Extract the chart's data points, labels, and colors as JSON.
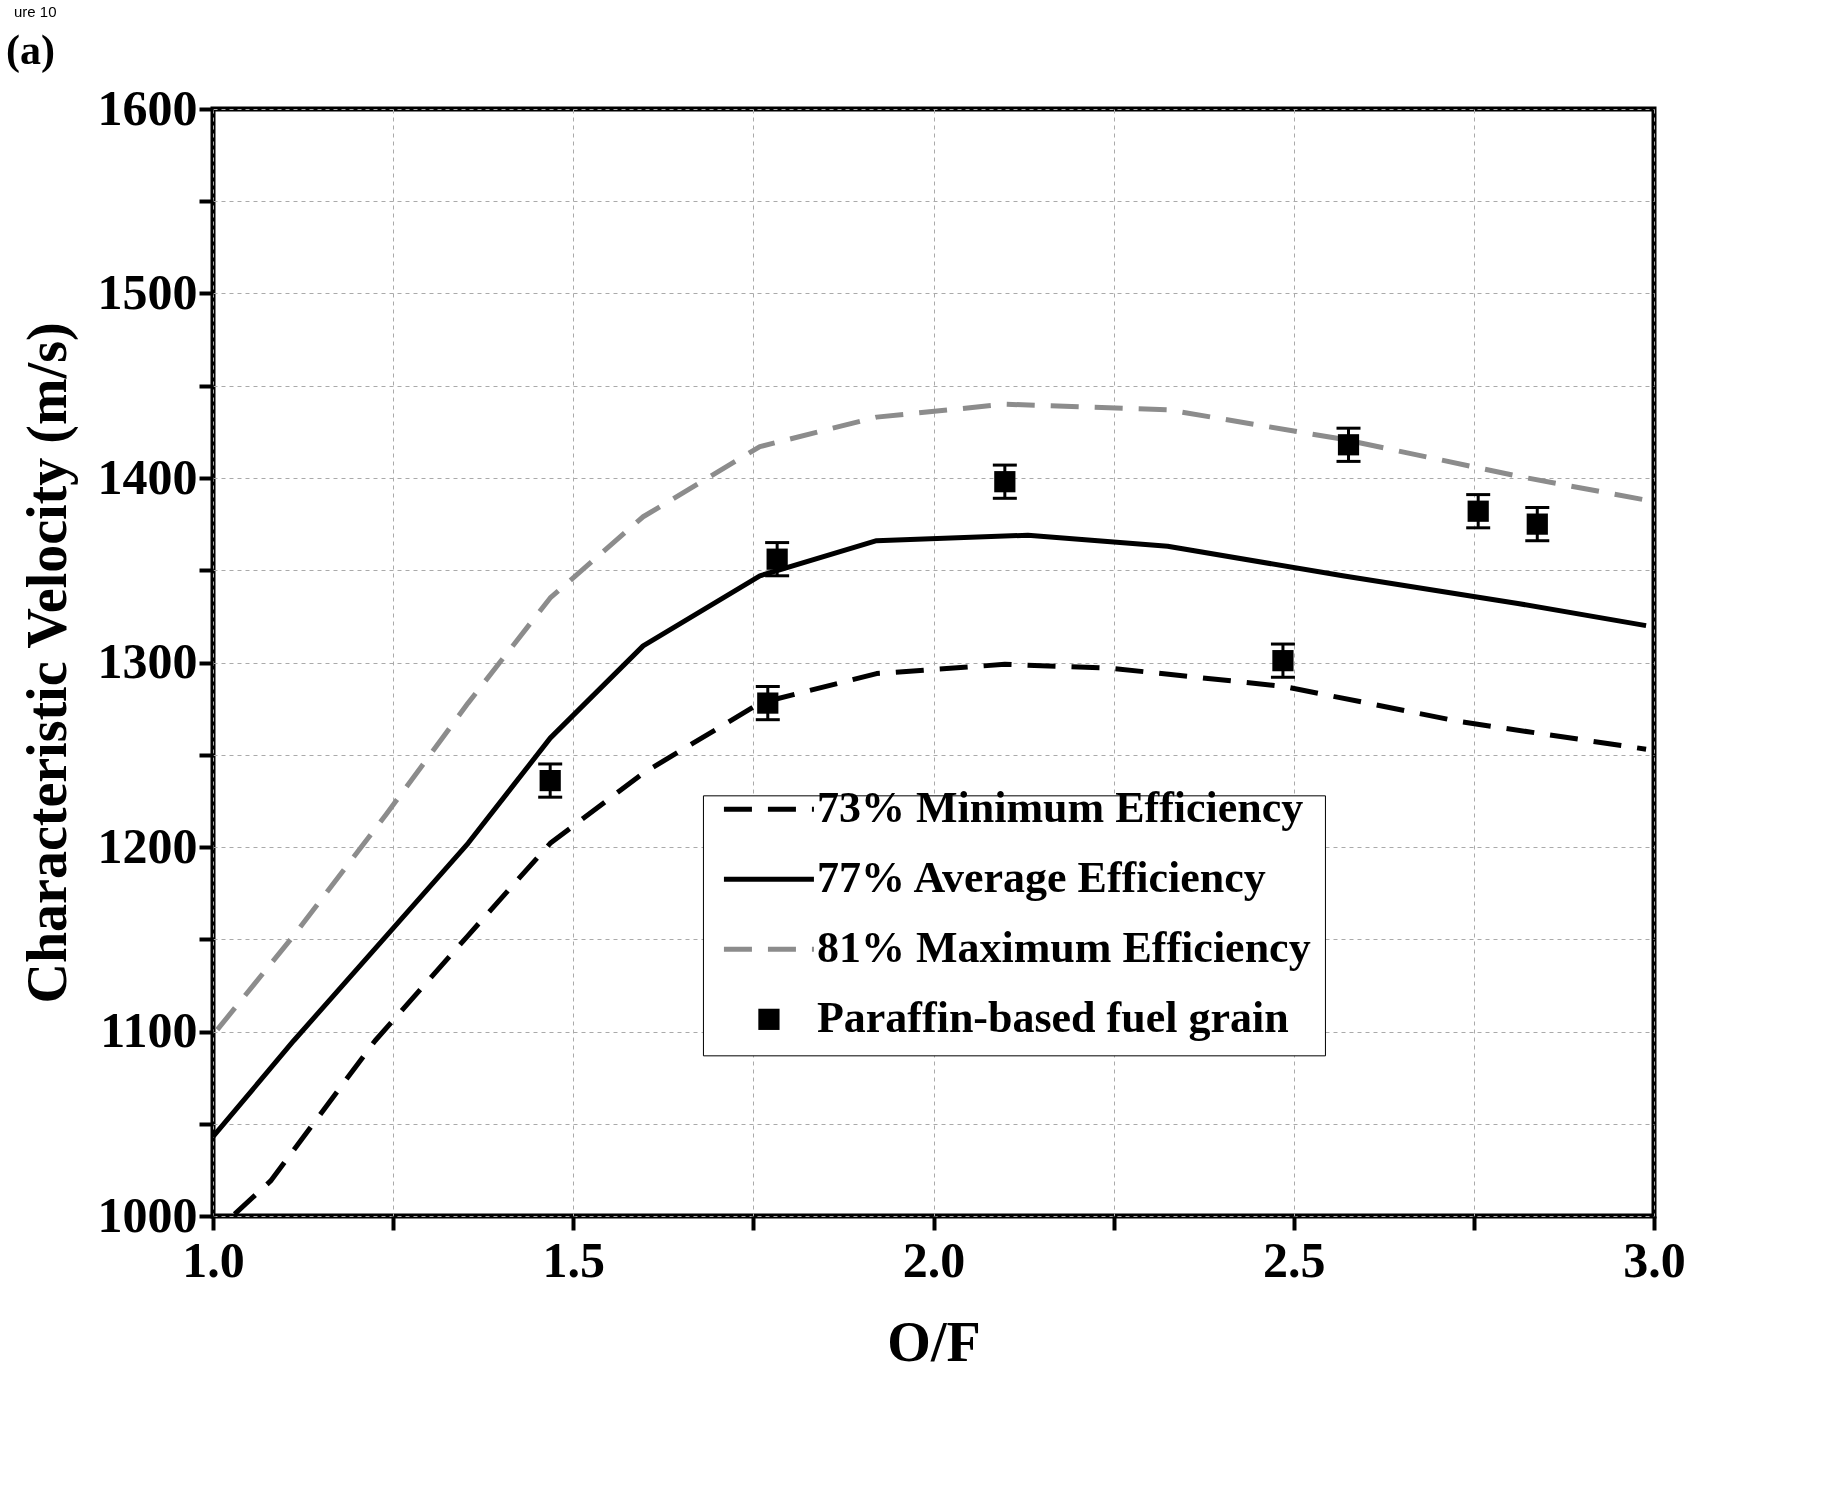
{
  "chart_data": {
    "type": "line",
    "xlabel": "O/F",
    "ylabel": "Characteristic Velocity (m/s)",
    "annotations": [
      "ure 10",
      "(a)"
    ],
    "xlim": [
      1.0,
      3.0
    ],
    "xticks": [
      {
        "value": 1,
        "label": "1.0"
      },
      {
        "value": 1.25,
        "label": null
      },
      {
        "value": 1.5,
        "label": "1.5"
      },
      {
        "value": 1.75,
        "label": null
      },
      {
        "value": 2,
        "label": "2.0"
      },
      {
        "value": 2.25,
        "label": null
      },
      {
        "value": 2.5,
        "label": "2.5"
      },
      {
        "value": 2.75,
        "label": null
      },
      {
        "value": 3,
        "label": "3.0"
      }
    ],
    "ylim": [
      1000,
      1600
    ],
    "yticks": [
      1000,
      {
        "value": 1050,
        "label": null
      },
      1100,
      {
        "value": 1150,
        "label": null
      },
      1200,
      {
        "value": 1250,
        "label": null
      },
      1300,
      {
        "value": 1350,
        "label": null
      },
      1400,
      {
        "value": 1450,
        "label": null
      },
      1500,
      {
        "value": 1550,
        "label": null
      },
      1600
    ],
    "grid": true,
    "legend": "bottom right",
    "series": [
      {
        "name": "73% Minimum Efficiency",
        "color": "#000000",
        "type": "line",
        "line_style": "dashed",
        "x": [
          1.03,
          1.08,
          1.225,
          1.354,
          1.468,
          1.597,
          1.759,
          1.921,
          2.099,
          2.244,
          2.487,
          2.73,
          2.989
        ],
        "values": [
          1001,
          1019,
          1095,
          1152,
          1202,
          1240,
          1278,
          1294,
          1299,
          1297,
          1287,
          1268,
          1253
        ]
      },
      {
        "name": "77% Average Efficiency",
        "color": "#000000",
        "type": "line",
        "line_style": "solid",
        "x": [
          1.0,
          1.112,
          1.241,
          1.354,
          1.468,
          1.597,
          1.759,
          1.921,
          2.131,
          2.325,
          2.568,
          2.811,
          2.989
        ],
        "values": [
          1043,
          1095,
          1152,
          1202,
          1259,
          1309,
          1347,
          1366,
          1369,
          1363,
          1347,
          1332,
          1320
        ]
      },
      {
        "name": "81% Maximum Efficiency",
        "color": "#8c8c8c",
        "type": "line",
        "line_style": "dashed",
        "x": [
          1.006,
          1.112,
          1.241,
          1.354,
          1.468,
          1.597,
          1.759,
          1.921,
          2.099,
          2.325,
          2.568,
          2.811,
          2.989
        ],
        "values": [
          1101,
          1152,
          1218,
          1278,
          1335,
          1379,
          1417,
          1433,
          1440,
          1437,
          1421,
          1401,
          1388
        ]
      },
      {
        "name": "Paraffin-based fuel grain",
        "color": "#000000",
        "type": "scatter",
        "marker": "square",
        "x": [
          1.468,
          1.783,
          1.77,
          2.099,
          2.485,
          2.576,
          2.756,
          2.838
        ],
        "values": [
          1236,
          1356,
          1278,
          1398,
          1301,
          1418,
          1382,
          1375
        ],
        "errors": [
          9,
          9,
          9,
          9,
          9,
          9,
          9,
          9
        ]
      }
    ]
  }
}
